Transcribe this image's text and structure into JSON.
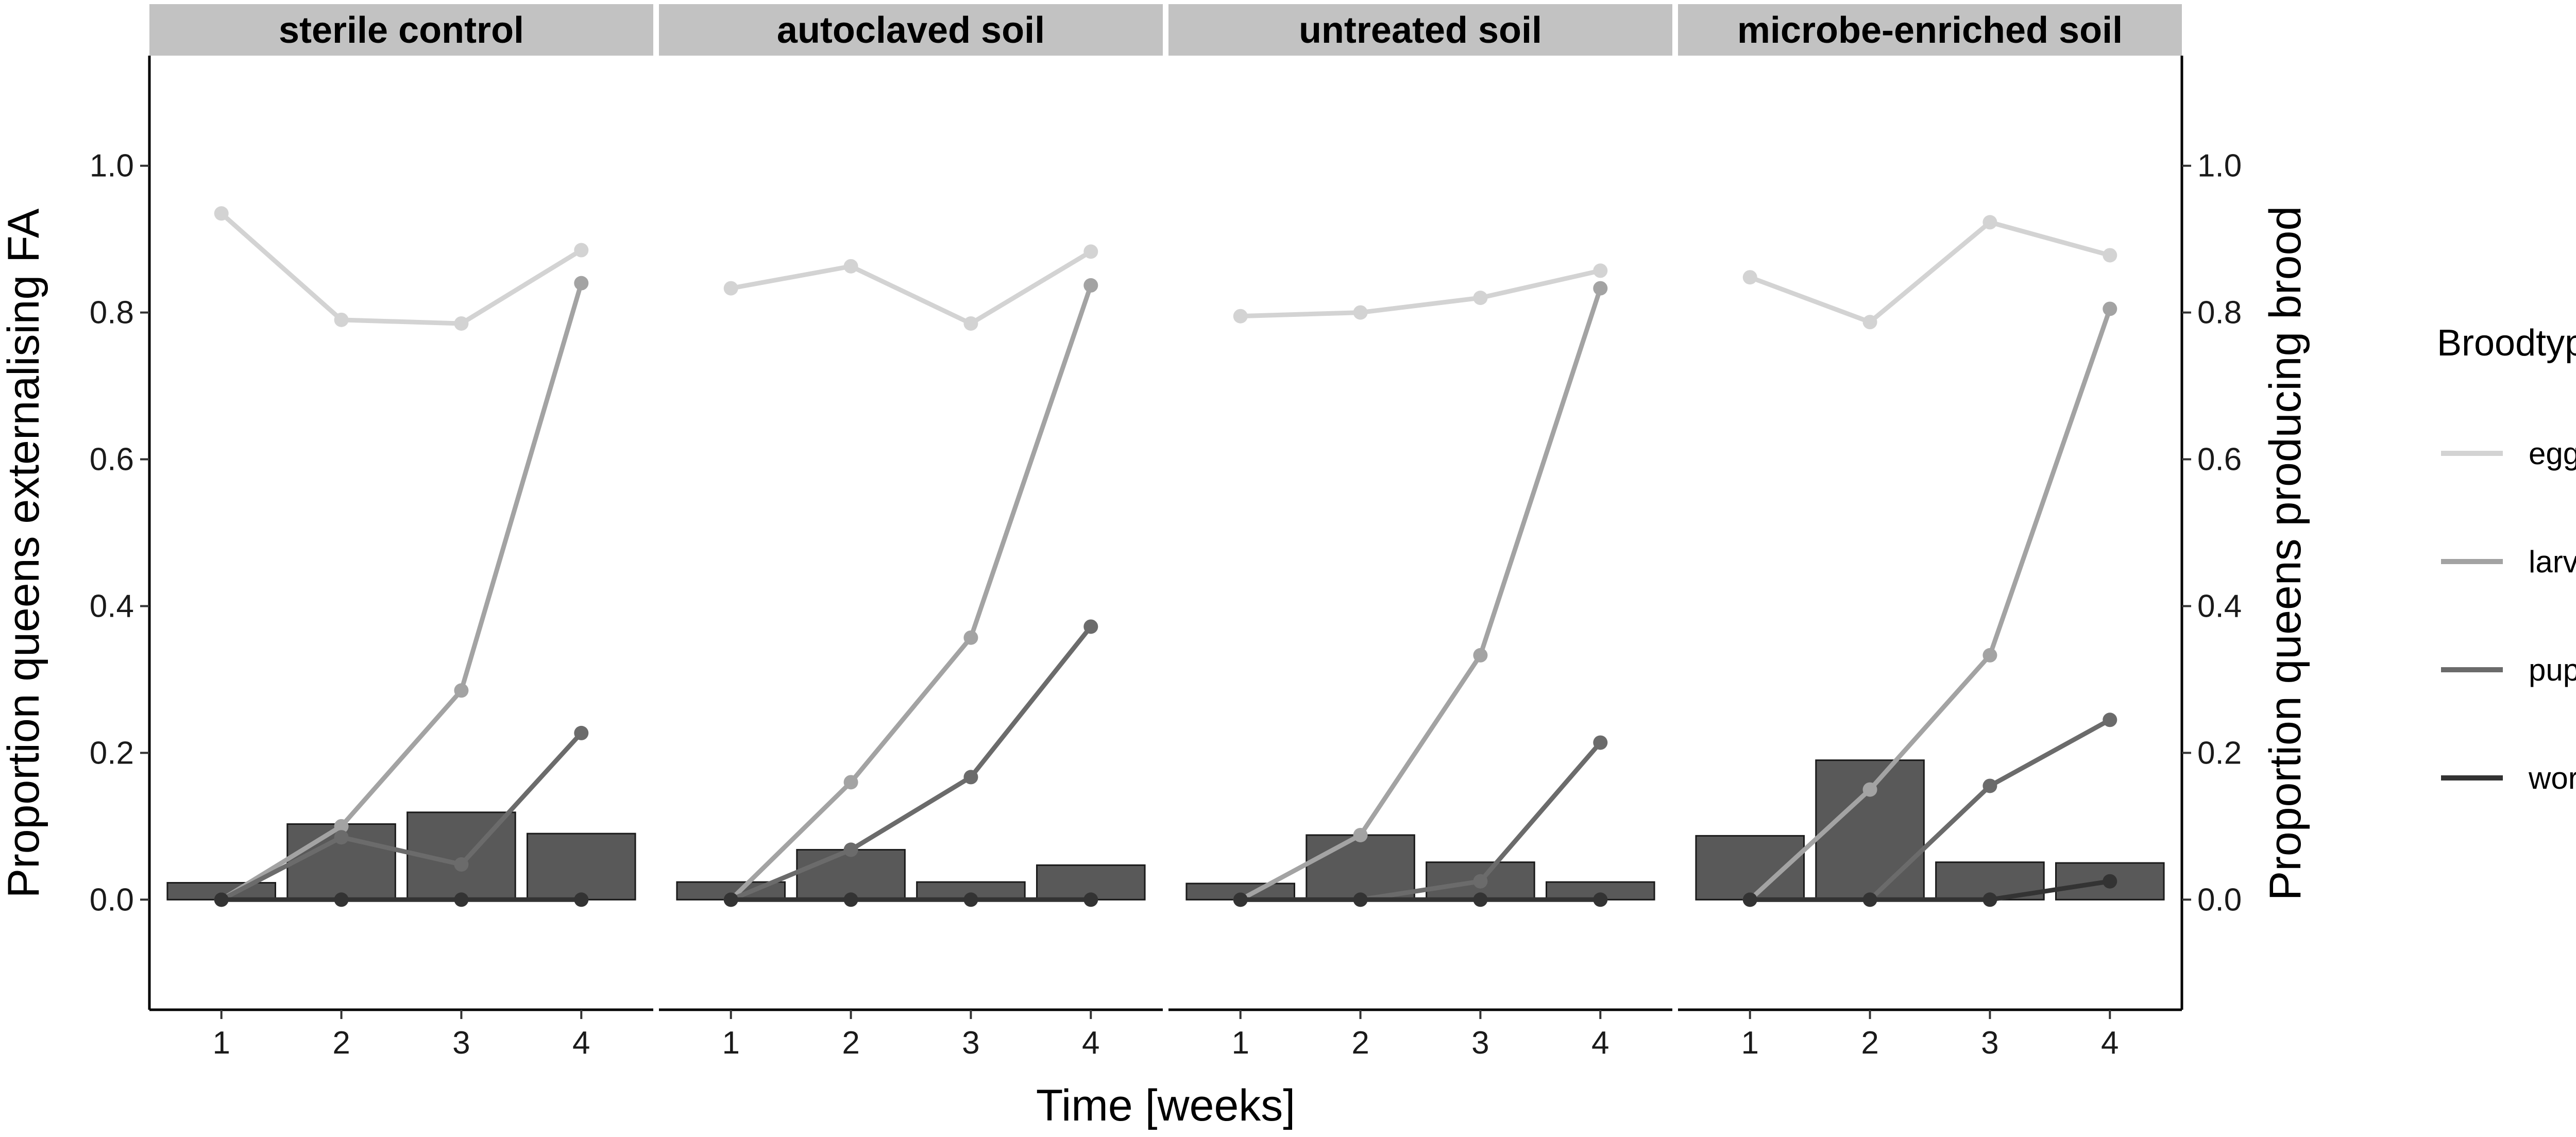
{
  "chart_data": {
    "type": "bar+line",
    "facets": [
      "sterile control",
      "autoclaved soil",
      "untreated soil",
      "microbe-enriched soil"
    ],
    "x": [
      1,
      2,
      3,
      4
    ],
    "x_tick_labels": [
      "1",
      "2",
      "3",
      "4"
    ],
    "xlabel": "Time [weeks]",
    "ylabel_left": "Proportion queens externalising FA",
    "ylabel_right": "Proportion queens producing brood",
    "ylim": [
      -0.15,
      1.15
    ],
    "y_ticks": [
      0.0,
      0.2,
      0.4,
      0.6,
      0.8,
      1.0
    ],
    "y_tick_labels": [
      "0.0",
      "0.2",
      "0.4",
      "0.6",
      "0.8",
      "1.0"
    ],
    "grid": false,
    "bar_color": "#595959",
    "bars": {
      "sterile control": [
        0.023,
        0.103,
        0.119,
        0.09
      ],
      "autoclaved soil": [
        0.024,
        0.068,
        0.024,
        0.047
      ],
      "untreated soil": [
        0.022,
        0.088,
        0.051,
        0.024
      ],
      "microbe-enriched soil": [
        0.087,
        0.19,
        0.051,
        0.05
      ]
    },
    "legend": {
      "title": "Broodtype",
      "placement": "right"
    },
    "series": [
      {
        "name": "eggs",
        "color": "#d3d3d3",
        "values": {
          "sterile control": [
            0.935,
            0.79,
            0.785,
            0.885
          ],
          "autoclaved soil": [
            0.833,
            0.863,
            0.785,
            0.883
          ],
          "untreated soil": [
            0.795,
            0.8,
            0.82,
            0.857
          ],
          "microbe-enriched soil": [
            0.848,
            0.787,
            0.923,
            0.878
          ]
        }
      },
      {
        "name": "larvae",
        "color": "#a3a3a3",
        "values": {
          "sterile control": [
            0.0,
            0.1,
            0.285,
            0.84
          ],
          "autoclaved soil": [
            0.0,
            0.16,
            0.357,
            0.837
          ],
          "untreated soil": [
            0.0,
            0.088,
            0.333,
            0.833
          ],
          "microbe-enriched soil": [
            0.0,
            0.15,
            0.333,
            0.805
          ]
        }
      },
      {
        "name": "pupae",
        "color": "#6b6b6b",
        "values": {
          "sterile control": [
            0.0,
            0.085,
            0.048,
            0.227
          ],
          "autoclaved soil": [
            0.0,
            0.068,
            0.167,
            0.372
          ],
          "untreated soil": [
            0.0,
            0.0,
            0.025,
            0.214
          ],
          "microbe-enriched soil": [
            0.0,
            0.0,
            0.155,
            0.245
          ]
        }
      },
      {
        "name": "worker",
        "color": "#333333",
        "values": {
          "sterile control": [
            0.0,
            0.0,
            0.0,
            0.0
          ],
          "autoclaved soil": [
            0.0,
            0.0,
            0.0,
            0.0
          ],
          "untreated soil": [
            0.0,
            0.0,
            0.0,
            0.0
          ],
          "microbe-enriched soil": [
            0.0,
            0.0,
            0.0,
            0.025
          ]
        }
      }
    ]
  }
}
